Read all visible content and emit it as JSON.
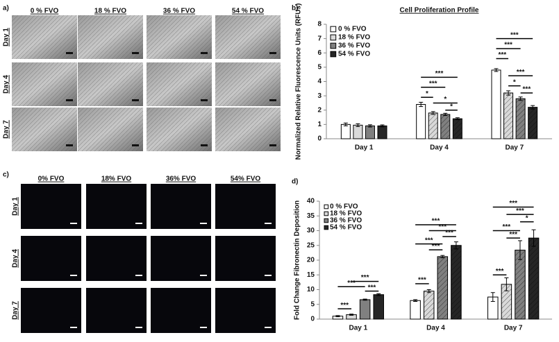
{
  "panels": {
    "a": {
      "label": "a)",
      "columns": [
        "0 % FVO",
        "18 % FVO",
        "36 % FVO",
        "54 % FVO"
      ],
      "rows": [
        "Day 1",
        "Day 4",
        "Day 7"
      ]
    },
    "b": {
      "label": "b)"
    },
    "c": {
      "label": "c)",
      "columns": [
        "0% FVO",
        "18% FVO",
        "36% FVO",
        "54% FVO"
      ],
      "rows": [
        "Day 1",
        "Day 4",
        "Day 7"
      ]
    },
    "d": {
      "label": "d)"
    }
  },
  "chart_data": [
    {
      "type": "bar",
      "title": "Cell Proliferation Profile",
      "y_label": "Normalized Relative Fluorescence Units (RFUs)",
      "categories": [
        "Day 1",
        "Day 4",
        "Day 7"
      ],
      "ylim": [
        0,
        8
      ],
      "yticks": [
        0,
        1,
        2,
        3,
        4,
        5,
        6,
        7,
        8
      ],
      "legend": "top-left",
      "series": [
        {
          "name": "0 % FVO",
          "color": "#ffffff",
          "values": [
            1.0,
            2.4,
            4.8
          ],
          "errors": [
            0.1,
            0.15,
            0.1
          ]
        },
        {
          "name": "18 % FVO",
          "color": "#d9d9d9",
          "values": [
            0.95,
            1.8,
            3.2
          ],
          "errors": [
            0.1,
            0.1,
            0.15
          ]
        },
        {
          "name": "36 % FVO",
          "color": "#808080",
          "values": [
            0.9,
            1.7,
            2.8
          ],
          "errors": [
            0.08,
            0.08,
            0.12
          ]
        },
        {
          "name": "54 % FVO",
          "color": "#262626",
          "values": [
            0.9,
            1.4,
            2.2
          ],
          "errors": [
            0.07,
            0.07,
            0.12
          ]
        }
      ],
      "annotations": [
        {
          "label": "***",
          "category": 1,
          "from": 0,
          "to": 3,
          "y": 4.3
        },
        {
          "label": "***",
          "category": 1,
          "from": 0,
          "to": 2,
          "y": 3.6
        },
        {
          "label": "*",
          "category": 1,
          "from": 0,
          "to": 1,
          "y": 2.9
        },
        {
          "label": "*",
          "category": 1,
          "from": 1,
          "to": 3,
          "y": 2.5
        },
        {
          "label": "*",
          "category": 1,
          "from": 2,
          "to": 3,
          "y": 2.0
        },
        {
          "label": "***",
          "category": 2,
          "from": 0,
          "to": 3,
          "y": 7.0
        },
        {
          "label": "***",
          "category": 2,
          "from": 0,
          "to": 2,
          "y": 6.3
        },
        {
          "label": "***",
          "category": 2,
          "from": 0,
          "to": 1,
          "y": 5.6
        },
        {
          "label": "***",
          "category": 2,
          "from": 1,
          "to": 3,
          "y": 4.4
        },
        {
          "label": "*",
          "category": 2,
          "from": 1,
          "to": 2,
          "y": 3.7
        },
        {
          "label": "***",
          "category": 2,
          "from": 2,
          "to": 3,
          "y": 3.2
        }
      ]
    },
    {
      "type": "bar",
      "y_label": "Fold Change Fibronectin Deposition",
      "categories": [
        "Day 1",
        "Day 4",
        "Day 7"
      ],
      "ylim": [
        0,
        40
      ],
      "yticks": [
        0,
        5,
        10,
        15,
        20,
        25,
        30,
        35,
        40
      ],
      "legend": "top-left",
      "series": [
        {
          "name": "0 % FVO",
          "color": "#ffffff",
          "values": [
            1.0,
            6.3,
            7.5
          ],
          "errors": [
            0.2,
            0.3,
            1.5
          ]
        },
        {
          "name": "18 % FVO",
          "color": "#d9d9d9",
          "values": [
            1.5,
            9.5,
            11.8
          ],
          "errors": [
            0.2,
            0.5,
            2.2
          ]
        },
        {
          "name": "36 % FVO",
          "color": "#808080",
          "values": [
            6.6,
            21.2,
            23.4
          ],
          "errors": [
            0.2,
            0.4,
            3.2
          ]
        },
        {
          "name": "54 % FVO",
          "color": "#262626",
          "values": [
            8.3,
            25,
            27.5
          ],
          "errors": [
            0.3,
            1.2,
            2.8
          ]
        }
      ],
      "annotations": [
        {
          "label": "***",
          "category": 0,
          "from": 1,
          "to": 3,
          "y": 12.8
        },
        {
          "label": "***",
          "category": 0,
          "from": 0,
          "to": 2,
          "y": 11
        },
        {
          "label": "***",
          "category": 0,
          "from": 2,
          "to": 3,
          "y": 9.5
        },
        {
          "label": "***",
          "category": 0,
          "from": 0,
          "to": 1,
          "y": 3.5
        },
        {
          "label": "***",
          "category": 1,
          "from": 0,
          "to": 3,
          "y": 32
        },
        {
          "label": "***",
          "category": 1,
          "from": 1,
          "to": 3,
          "y": 30
        },
        {
          "label": "***",
          "category": 1,
          "from": 2,
          "to": 3,
          "y": 28
        },
        {
          "label": "***",
          "category": 1,
          "from": 0,
          "to": 2,
          "y": 25.5
        },
        {
          "label": "***",
          "category": 1,
          "from": 1,
          "to": 2,
          "y": 23.5
        },
        {
          "label": "***",
          "category": 1,
          "from": 0,
          "to": 1,
          "y": 12
        },
        {
          "label": "***",
          "category": 2,
          "from": 0,
          "to": 3,
          "y": 38
        },
        {
          "label": "***",
          "category": 2,
          "from": 1,
          "to": 3,
          "y": 35.5
        },
        {
          "label": "*",
          "category": 2,
          "from": 2,
          "to": 3,
          "y": 33
        },
        {
          "label": "***",
          "category": 2,
          "from": 0,
          "to": 2,
          "y": 30
        },
        {
          "label": "***",
          "category": 2,
          "from": 1,
          "to": 2,
          "y": 27.5
        },
        {
          "label": "***",
          "category": 2,
          "from": 0,
          "to": 1,
          "y": 15
        }
      ]
    }
  ]
}
